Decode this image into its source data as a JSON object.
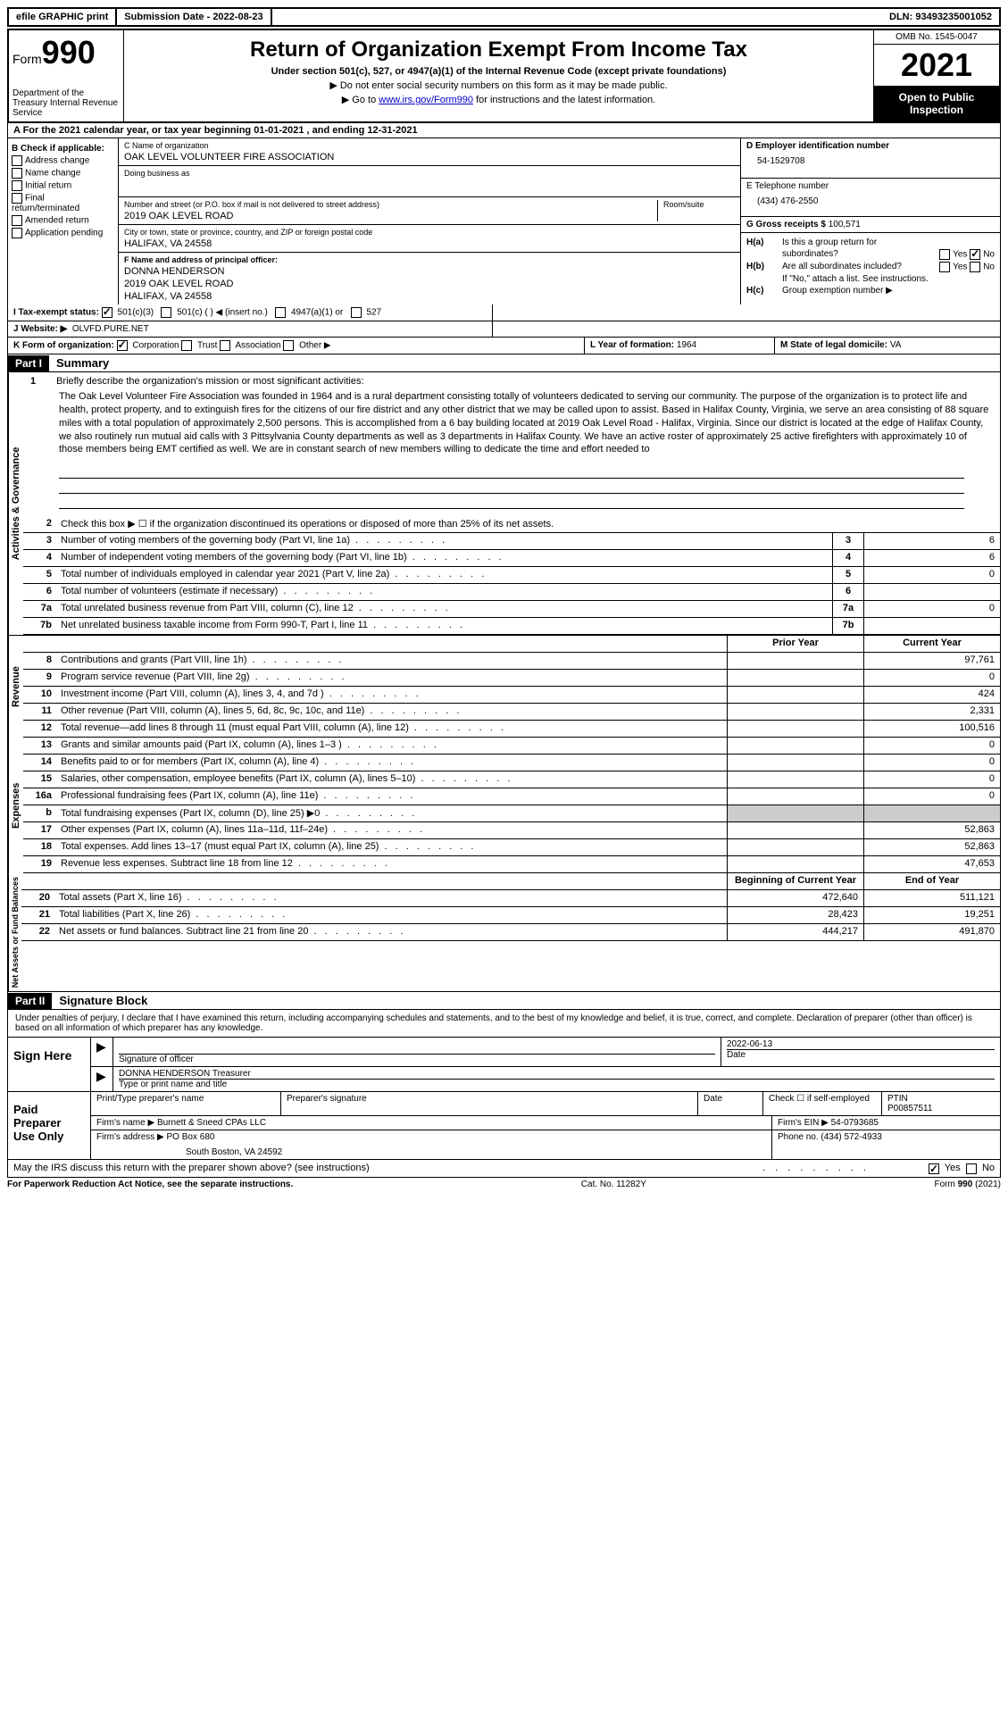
{
  "topbar": {
    "efile": "efile GRAPHIC print",
    "submission": "Submission Date - 2022-08-23",
    "dln": "DLN: 93493235001052"
  },
  "header": {
    "form_label": "Form",
    "form_num": "990",
    "dept": "Department of the Treasury Internal Revenue Service",
    "title": "Return of Organization Exempt From Income Tax",
    "subtitle": "Under section 501(c), 527, or 4947(a)(1) of the Internal Revenue Code (except private foundations)",
    "note1": "▶ Do not enter social security numbers on this form as it may be made public.",
    "note2_pre": "▶ Go to ",
    "note2_link": "www.irs.gov/Form990",
    "note2_post": " for instructions and the latest information.",
    "omb": "OMB No. 1545-0047",
    "year": "2021",
    "inspection": "Open to Public Inspection"
  },
  "row_a": "A For the 2021 calendar year, or tax year beginning 01-01-2021   , and ending 12-31-2021",
  "col_b": {
    "label": "B Check if applicable:",
    "items": [
      "Address change",
      "Name change",
      "Initial return",
      "Final return/terminated",
      "Amended return",
      "Application pending"
    ]
  },
  "col_c": {
    "name_label": "C Name of organization",
    "name": "OAK LEVEL VOLUNTEER FIRE ASSOCIATION",
    "dba_label": "Doing business as",
    "dba": "",
    "street_label": "Number and street (or P.O. box if mail is not delivered to street address)",
    "room_label": "Room/suite",
    "street": "2019 OAK LEVEL ROAD",
    "city_label": "City or town, state or province, country, and ZIP or foreign postal code",
    "city": "HALIFAX, VA  24558",
    "officer_label": "F Name and address of principal officer:",
    "officer_name": "DONNA HENDERSON",
    "officer_street": "2019 OAK LEVEL ROAD",
    "officer_city": "HALIFAX, VA  24558"
  },
  "col_d": {
    "ein_label": "D Employer identification number",
    "ein": "54-1529708",
    "phone_label": "E Telephone number",
    "phone": "(434) 476-2550",
    "receipts_label": "G Gross receipts $",
    "receipts": "100,571",
    "ha_label": "H(a)  Is this a group return for",
    "ha_sub": "subordinates?",
    "hb_label": "H(b)  Are all subordinates included?",
    "hb_note": "If \"No,\" attach a list. See instructions.",
    "hc_label": "H(c)  Group exemption number ▶"
  },
  "tax_status": {
    "label": "I   Tax-exempt status:",
    "opt1": "501(c)(3)",
    "opt2": "501(c) (   ) ◀ (insert no.)",
    "opt3": "4947(a)(1) or",
    "opt4": "527"
  },
  "website": {
    "label": "J  Website: ▶",
    "value": "OLVFD.PURE.NET"
  },
  "org_form": {
    "label": "K Form of organization:",
    "opts": [
      "Corporation",
      "Trust",
      "Association",
      "Other ▶"
    ],
    "year_label": "L Year of formation:",
    "year": "1964",
    "state_label": "M State of legal domicile:",
    "state": "VA"
  },
  "part1": {
    "header": "Part I",
    "title": "Summary",
    "section_ag": "Activities & Governance",
    "section_rev": "Revenue",
    "section_exp": "Expenses",
    "section_net": "Net Assets or Fund Balances",
    "line1_label": "Briefly describe the organization's mission or most significant activities:",
    "line1_text": "The Oak Level Volunteer Fire Association was founded in 1964 and is a rural department consisting totally of volunteers dedicated to serving our community. The purpose of the organization is to protect life and health, protect property, and to extinguish fires for the citizens of our fire district and any other district that we may be called upon to assist. Based in Halifax County, Virginia, we serve an area consisting of 88 square miles with a total population of approximately 2,500 persons. This is accomplished from a 6 bay building located at 2019 Oak Level Road - Halifax, Virginia. Since our district is located at the edge of Halifax County, we also routinely run mutual aid calls with 3 Pittsylvania County departments as well as 3 departments in Halifax County. We have an active roster of approximately 25 active firefighters with approximately 10 of those members being EMT certified as well. We are in constant search of new members willing to dedicate the time and effort needed to",
    "line2": "Check this box ▶ ☐ if the organization discontinued its operations or disposed of more than 25% of its net assets.",
    "lines_ag": [
      {
        "n": "3",
        "d": "Number of voting members of the governing body (Part VI, line 1a)",
        "v": "6"
      },
      {
        "n": "4",
        "d": "Number of independent voting members of the governing body (Part VI, line 1b)",
        "v": "6"
      },
      {
        "n": "5",
        "d": "Total number of individuals employed in calendar year 2021 (Part V, line 2a)",
        "v": "0"
      },
      {
        "n": "6",
        "d": "Total number of volunteers (estimate if necessary)",
        "v": ""
      },
      {
        "n": "7a",
        "d": "Total unrelated business revenue from Part VIII, column (C), line 12",
        "v": "0"
      },
      {
        "n": "7b",
        "d": "Net unrelated business taxable income from Form 990-T, Part I, line 11",
        "v": ""
      }
    ],
    "col_prior": "Prior Year",
    "col_current": "Current Year",
    "lines_rev": [
      {
        "n": "8",
        "d": "Contributions and grants (Part VIII, line 1h)",
        "p": "",
        "c": "97,761"
      },
      {
        "n": "9",
        "d": "Program service revenue (Part VIII, line 2g)",
        "p": "",
        "c": "0"
      },
      {
        "n": "10",
        "d": "Investment income (Part VIII, column (A), lines 3, 4, and 7d )",
        "p": "",
        "c": "424"
      },
      {
        "n": "11",
        "d": "Other revenue (Part VIII, column (A), lines 5, 6d, 8c, 9c, 10c, and 11e)",
        "p": "",
        "c": "2,331"
      },
      {
        "n": "12",
        "d": "Total revenue—add lines 8 through 11 (must equal Part VIII, column (A), line 12)",
        "p": "",
        "c": "100,516"
      }
    ],
    "lines_exp": [
      {
        "n": "13",
        "d": "Grants and similar amounts paid (Part IX, column (A), lines 1–3 )",
        "p": "",
        "c": "0"
      },
      {
        "n": "14",
        "d": "Benefits paid to or for members (Part IX, column (A), line 4)",
        "p": "",
        "c": "0"
      },
      {
        "n": "15",
        "d": "Salaries, other compensation, employee benefits (Part IX, column (A), lines 5–10)",
        "p": "",
        "c": "0"
      },
      {
        "n": "16a",
        "d": "Professional fundraising fees (Part IX, column (A), line 11e)",
        "p": "",
        "c": "0"
      },
      {
        "n": "b",
        "d": "Total fundraising expenses (Part IX, column (D), line 25) ▶0",
        "p": "shaded",
        "c": "shaded"
      },
      {
        "n": "17",
        "d": "Other expenses (Part IX, column (A), lines 11a–11d, 11f–24e)",
        "p": "",
        "c": "52,863"
      },
      {
        "n": "18",
        "d": "Total expenses. Add lines 13–17 (must equal Part IX, column (A), line 25)",
        "p": "",
        "c": "52,863"
      },
      {
        "n": "19",
        "d": "Revenue less expenses. Subtract line 18 from line 12",
        "p": "",
        "c": "47,653"
      }
    ],
    "col_begin": "Beginning of Current Year",
    "col_end": "End of Year",
    "lines_net": [
      {
        "n": "20",
        "d": "Total assets (Part X, line 16)",
        "p": "472,640",
        "c": "511,121"
      },
      {
        "n": "21",
        "d": "Total liabilities (Part X, line 26)",
        "p": "28,423",
        "c": "19,251"
      },
      {
        "n": "22",
        "d": "Net assets or fund balances. Subtract line 21 from line 20",
        "p": "444,217",
        "c": "491,870"
      }
    ]
  },
  "part2": {
    "header": "Part II",
    "title": "Signature Block",
    "declaration": "Under penalties of perjury, I declare that I have examined this return, including accompanying schedules and statements, and to the best of my knowledge and belief, it is true, correct, and complete. Declaration of preparer (other than officer) is based on all information of which preparer has any knowledge.",
    "sign_here": "Sign Here",
    "sig_officer_label": "Signature of officer",
    "sig_date_label": "Date",
    "sig_date": "2022-06-13",
    "sig_name": "DONNA HENDERSON Treasurer",
    "sig_name_label": "Type or print name and title",
    "paid_label": "Paid Preparer Use Only",
    "prep_name_label": "Print/Type preparer's name",
    "prep_sig_label": "Preparer's signature",
    "prep_date_label": "Date",
    "self_emp": "Check ☐ if self-employed",
    "ptin_label": "PTIN",
    "ptin": "P00857511",
    "firm_name_label": "Firm's name     ▶",
    "firm_name": "Burnett & Sneed CPAs LLC",
    "firm_ein_label": "Firm's EIN ▶",
    "firm_ein": "54-0793685",
    "firm_addr_label": "Firm's address ▶",
    "firm_addr1": "PO Box 680",
    "firm_addr2": "South Boston, VA  24592",
    "firm_phone_label": "Phone no.",
    "firm_phone": "(434) 572-4933",
    "discuss": "May the IRS discuss this return with the preparer shown above? (see instructions)"
  },
  "footer": {
    "left": "For Paperwork Reduction Act Notice, see the separate instructions.",
    "mid": "Cat. No. 11282Y",
    "right": "Form 990 (2021)"
  },
  "yes": "Yes",
  "no": "No"
}
